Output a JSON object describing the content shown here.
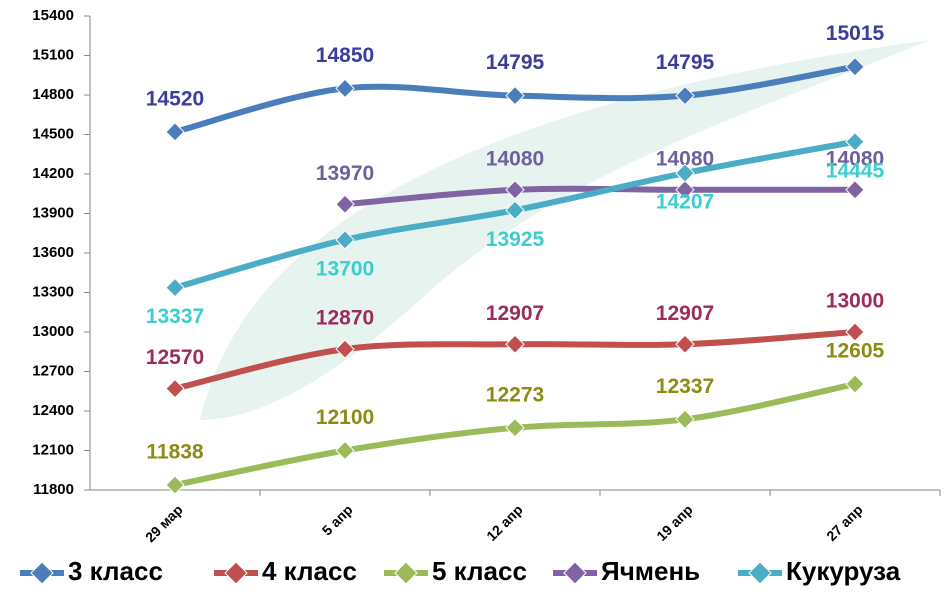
{
  "chart_data": {
    "type": "line",
    "categories": [
      "29 мар",
      "5 апр",
      "12 апр",
      "19 апр",
      "27 апр"
    ],
    "ylim": [
      11800,
      15400
    ],
    "yticks": [
      11800,
      12100,
      12400,
      12700,
      13000,
      13300,
      13600,
      13900,
      14200,
      14500,
      14800,
      15100,
      15400
    ],
    "series": [
      {
        "name": "3 класс",
        "color": "#4a7ebb",
        "label_color": "#3c3c9c",
        "values": [
          14520,
          14850,
          14795,
          14795,
          15015
        ]
      },
      {
        "name": "4 класс",
        "color": "#c0504d",
        "label_color": "#9b2d5e",
        "values": [
          12570,
          12870,
          12907,
          12907,
          13000
        ]
      },
      {
        "name": "5 класс",
        "color": "#9bbb59",
        "label_color": "#8c8c14",
        "values": [
          11838,
          12100,
          12273,
          12337,
          12605
        ]
      },
      {
        "name": "Ячмень",
        "color": "#8064a2",
        "label_color": "#6e5f9e",
        "values": [
          null,
          13970,
          14080,
          14080,
          14080
        ]
      },
      {
        "name": "Кукуруза",
        "color": "#4bacc6",
        "label_color": "#3ccdd0",
        "values": [
          13337,
          13700,
          13925,
          14207,
          14445
        ]
      }
    ]
  }
}
